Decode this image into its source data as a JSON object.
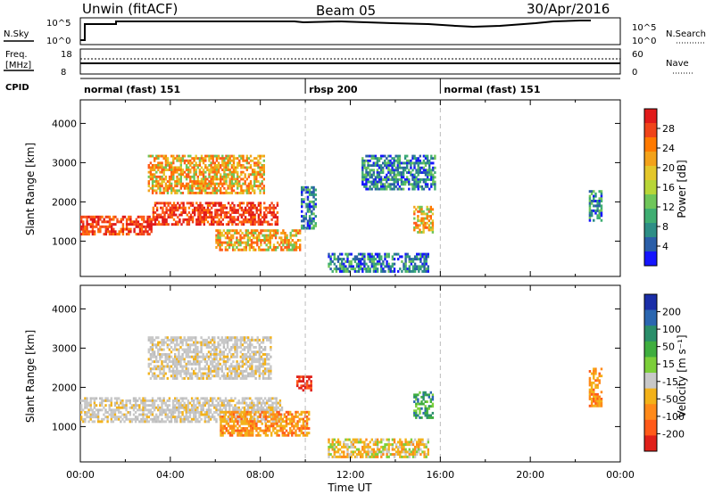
{
  "header": {
    "station": "Unwin (fitACF)",
    "beam": "Beam 05",
    "date": "30/Apr/2016"
  },
  "top_panels": {
    "nsky_label": "N.Sky",
    "nsky_ticks_left": [
      "10^5",
      "10^0"
    ],
    "nsearch_label": "N.Search",
    "nsearch_ticks_right": [
      "10^5",
      "10^0"
    ],
    "freq_label_line1": "Freq.",
    "freq_label_line2": "[MHz]",
    "freq_ticks": [
      "18",
      "8"
    ],
    "nave_label": "Nave",
    "nave_ticks": [
      "60",
      "0"
    ],
    "cpid_label": "CPID",
    "cpid_segments": [
      {
        "label": "normal (fast) 151",
        "start_hour": 0
      },
      {
        "label": "rbsp 200",
        "start_hour": 10
      },
      {
        "label": "normal (fast) 151",
        "start_hour": 16
      }
    ]
  },
  "chart_data": [
    {
      "type": "heatmap",
      "name": "power",
      "ylabel": "Slant Range [km]",
      "xlabel": "",
      "ylim": [
        100,
        4600
      ],
      "xlim": [
        0,
        24
      ],
      "yticks": [
        "4000",
        "3000",
        "2000",
        "1000"
      ],
      "colorbar": {
        "label": "Power [dB]",
        "ticks": [
          "28",
          "24",
          "20",
          "16",
          "12",
          "8",
          "4"
        ],
        "colors": [
          "#e11a1a",
          "#f0441a",
          "#ff7a00",
          "#f3a21a",
          "#e4c72a",
          "#b8d638",
          "#6fc65a",
          "#3fae72",
          "#2d8e86",
          "#2a5ea8",
          "#1515ff"
        ]
      },
      "regions": [
        {
          "t0": 0,
          "t1": 3.2,
          "r0": 1150,
          "r1": 1650,
          "level": "high"
        },
        {
          "t0": 3.2,
          "t1": 8.8,
          "r0": 1400,
          "r1": 2000,
          "level": "high"
        },
        {
          "t0": 3.0,
          "t1": 8.2,
          "r0": 2200,
          "r1": 3200,
          "level": "medium"
        },
        {
          "t0": 6.0,
          "t1": 9.8,
          "r0": 750,
          "r1": 1300,
          "level": "medium"
        },
        {
          "t0": 9.8,
          "t1": 10.5,
          "r0": 1300,
          "r1": 2400,
          "level": "low"
        },
        {
          "t0": 14.8,
          "t1": 15.7,
          "r0": 1200,
          "r1": 1900,
          "level": "medium"
        },
        {
          "t0": 12.5,
          "t1": 15.8,
          "r0": 2300,
          "r1": 3200,
          "level": "low"
        },
        {
          "t0": 11.0,
          "t1": 15.5,
          "r0": 200,
          "r1": 700,
          "level": "low"
        },
        {
          "t0": 22.6,
          "t1": 23.2,
          "r0": 1500,
          "r1": 2300,
          "level": "low"
        }
      ]
    },
    {
      "type": "heatmap",
      "name": "velocity",
      "ylabel": "Slant Range [km]",
      "xlabel": "Time UT",
      "ylim": [
        100,
        4600
      ],
      "xlim": [
        0,
        24
      ],
      "xticks": [
        "00:00",
        "04:00",
        "08:00",
        "12:00",
        "16:00",
        "20:00",
        "00:00"
      ],
      "yticks": [
        "4000",
        "3000",
        "2000",
        "1000"
      ],
      "colorbar": {
        "label": "Velocity [m s⁻¹]",
        "ticks": [
          "200",
          "100",
          "50",
          "15",
          "-15",
          "-50",
          "-100",
          "-200"
        ],
        "colors": [
          "#1a2ea8",
          "#2a66b0",
          "#2a8e6a",
          "#3fae3f",
          "#7ccf3a",
          "#c8c8c8",
          "#f3b21a",
          "#ff8a1a",
          "#ff5a1a",
          "#e0201a"
        ]
      },
      "regions": [
        {
          "t0": 0,
          "t1": 9.0,
          "r0": 1100,
          "r1": 1750,
          "level": "gray"
        },
        {
          "t0": 3.0,
          "t1": 8.5,
          "r0": 2200,
          "r1": 3300,
          "level": "gray"
        },
        {
          "t0": 6.2,
          "t1": 10.2,
          "r0": 750,
          "r1": 1400,
          "level": "orange"
        },
        {
          "t0": 9.6,
          "t1": 10.3,
          "r0": 1900,
          "r1": 2300,
          "level": "red"
        },
        {
          "t0": 14.8,
          "t1": 15.7,
          "r0": 1200,
          "r1": 1900,
          "level": "green"
        },
        {
          "t0": 11.0,
          "t1": 15.5,
          "r0": 200,
          "r1": 700,
          "level": "lightorange"
        },
        {
          "t0": 22.6,
          "t1": 23.2,
          "r0": 1500,
          "r1": 2500,
          "level": "orange"
        }
      ]
    }
  ]
}
